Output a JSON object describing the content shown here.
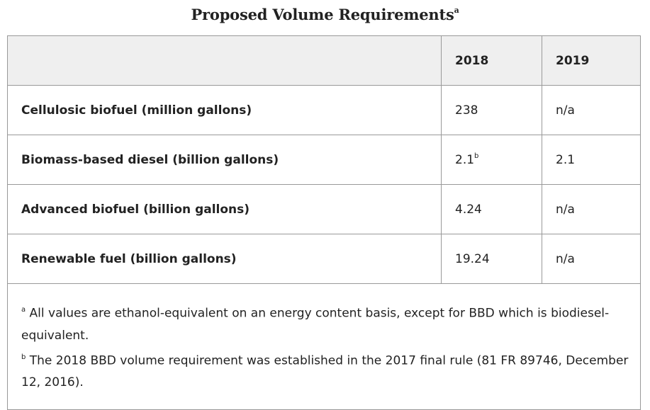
{
  "title": {
    "text": "Proposed Volume Requirements",
    "mark": "a"
  },
  "table": {
    "columns": [
      "",
      "2018",
      "2019"
    ],
    "rows": [
      {
        "label": "Cellulosic biofuel (million gallons)",
        "y2018": "238",
        "y2018_mark": "",
        "y2019": "n/a"
      },
      {
        "label": "Biomass-based diesel (billion gallons)",
        "y2018": "2.1",
        "y2018_mark": "b",
        "y2019": "2.1"
      },
      {
        "label": "Advanced biofuel (billion gallons)",
        "y2018": "4.24",
        "y2018_mark": "",
        "y2019": "n/a"
      },
      {
        "label": "Renewable fuel (billion gallons)",
        "y2018": "19.24",
        "y2018_mark": "",
        "y2019": "n/a"
      }
    ]
  },
  "footnotes": [
    {
      "mark": "a",
      "text": "All values are ethanol-equivalent on an energy content basis, except for BBD which is biodiesel-equivalent."
    },
    {
      "mark": "b",
      "text": "The 2018 BBD volume requirement was established in the 2017 final rule (81 FR 89746, December 12, 2016)."
    }
  ]
}
